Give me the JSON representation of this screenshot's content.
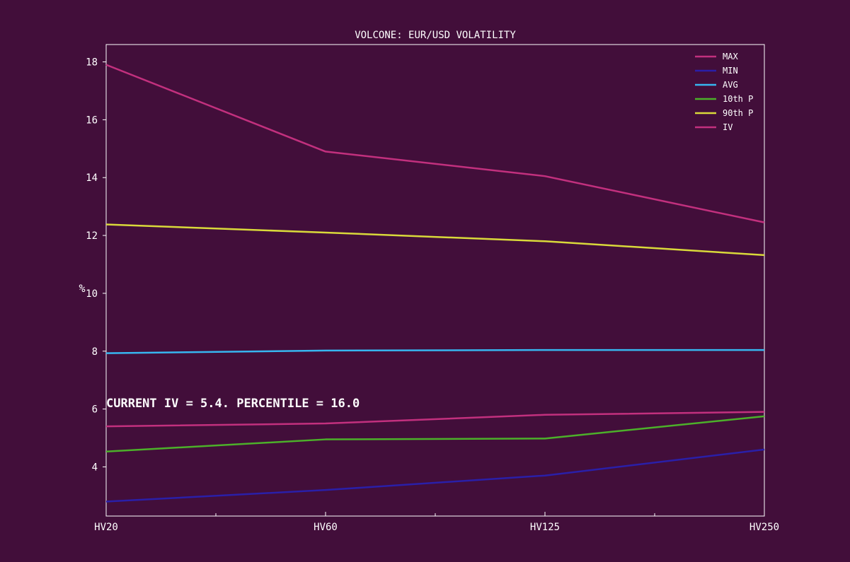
{
  "chart_data": {
    "type": "line",
    "title": "VOLCONE: EUR/USD VOLATILITY",
    "xlabel": "",
    "ylabel": "%",
    "categories": [
      "HV20",
      "HV60",
      "HV125",
      "HV250"
    ],
    "ylim": [
      2.3,
      18.6
    ],
    "yticks": [
      4,
      6,
      8,
      10,
      12,
      14,
      16,
      18
    ],
    "grid": false,
    "legend_position": "top-right",
    "series": [
      {
        "name": "MAX",
        "color": "#c2307e",
        "values": [
          17.9,
          14.9,
          14.05,
          12.45
        ]
      },
      {
        "name": "MIN",
        "color": "#2a1fa8",
        "values": [
          2.8,
          3.2,
          3.7,
          4.6
        ]
      },
      {
        "name": "AVG",
        "color": "#37b6f0",
        "values": [
          7.93,
          8.02,
          8.04,
          8.04
        ]
      },
      {
        "name": "10th P",
        "color": "#4cb02a",
        "values": [
          4.53,
          4.95,
          4.98,
          5.75
        ]
      },
      {
        "name": "90th P",
        "color": "#d9d93a",
        "values": [
          12.38,
          12.1,
          11.8,
          11.32
        ]
      },
      {
        "name": "IV",
        "color": "#c2307e",
        "values": [
          5.4,
          5.5,
          5.8,
          5.9
        ]
      }
    ],
    "annotation": "CURRENT IV = 5.4. PERCENTILE = 16.0"
  }
}
